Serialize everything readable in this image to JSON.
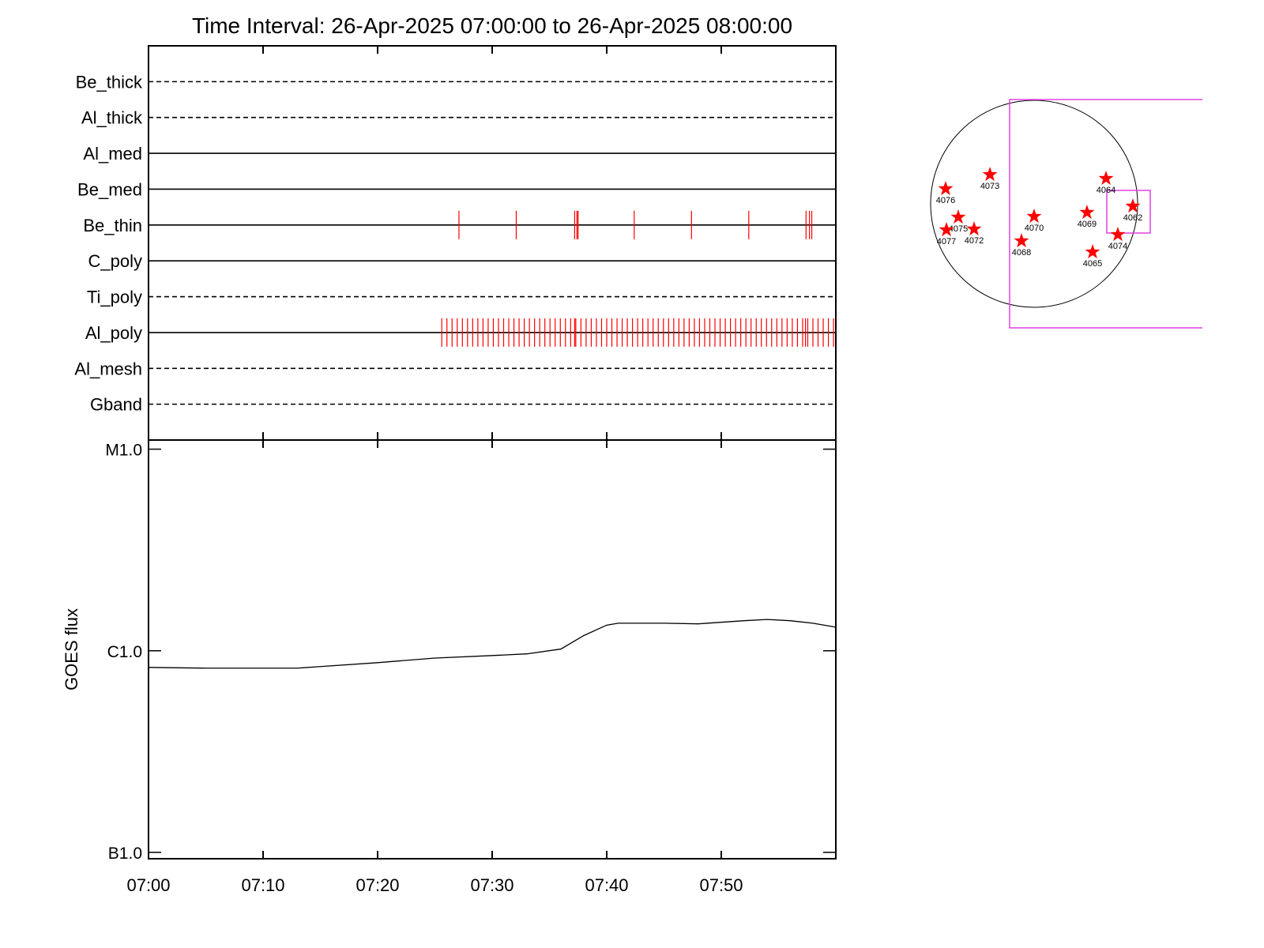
{
  "chart_data": [
    {
      "type": "timeline",
      "title": "Time Interval: 26-Apr-2025 07:00:00 to 26-Apr-2025 08:00:00",
      "color": "#ff0000",
      "series": [
        {
          "name": "Be_thick",
          "style": "dashed",
          "times": []
        },
        {
          "name": "Al_thick",
          "style": "dashed",
          "times": []
        },
        {
          "name": "Al_med",
          "style": "solid",
          "times": []
        },
        {
          "name": "Be_med",
          "style": "solid",
          "times": []
        },
        {
          "name": "Be_thin",
          "style": "solid",
          "times": [
            27.1,
            32.1,
            37.2,
            37.4,
            37.5,
            42.4,
            47.4,
            52.4,
            57.4,
            57.7,
            57.9
          ]
        },
        {
          "name": "C_poly",
          "style": "solid",
          "times": []
        },
        {
          "name": "Ti_poly",
          "style": "dashed",
          "times": []
        },
        {
          "name": "Al_poly",
          "style": "solid",
          "times": [
            25.6,
            26.05,
            26.5,
            26.95,
            27.4,
            27.85,
            28.3,
            28.75,
            29.2,
            29.65,
            30.1,
            30.55,
            31.0,
            31.45,
            31.9,
            32.35,
            32.8,
            33.25,
            33.7,
            34.15,
            34.6,
            35.05,
            35.5,
            35.95,
            36.4,
            36.85,
            37.2,
            37.3,
            37.75,
            38.2,
            38.65,
            39.1,
            39.55,
            40.0,
            40.45,
            40.9,
            41.35,
            41.8,
            42.25,
            42.7,
            43.15,
            43.6,
            44.05,
            44.5,
            44.95,
            45.4,
            45.85,
            46.3,
            46.75,
            47.2,
            47.65,
            48.1,
            48.55,
            49.0,
            49.45,
            49.9,
            50.35,
            50.8,
            51.25,
            51.7,
            52.15,
            52.6,
            53.05,
            53.5,
            53.95,
            54.4,
            54.85,
            55.3,
            55.75,
            56.2,
            56.65,
            57.1,
            57.35,
            57.55,
            58.0,
            58.45,
            58.9,
            59.35,
            59.8
          ]
        },
        {
          "name": "Al_mesh",
          "style": "dashed",
          "times": []
        },
        {
          "name": "Gband",
          "style": "dashed",
          "times": []
        }
      ]
    },
    {
      "type": "line",
      "ylabel": "GOES flux",
      "log_y": true,
      "color": "#000000",
      "x": [
        0,
        5,
        13,
        15,
        20,
        25,
        30,
        33,
        36,
        38,
        40,
        41,
        45,
        48,
        52,
        54,
        56,
        58,
        60
      ],
      "values": [
        8.27e-07,
        8.2e-07,
        8.2e-07,
        8.35e-07,
        8.73e-07,
        9.2e-07,
        9.47e-07,
        9.65e-07,
        1.02e-06,
        1.19e-06,
        1.34e-06,
        1.37e-06,
        1.37e-06,
        1.36e-06,
        1.41e-06,
        1.43e-06,
        1.41e-06,
        1.37e-06,
        1.31e-06
      ],
      "xlim": [
        0,
        60
      ],
      "xticks": [
        {
          "value": 0,
          "label": "07:00"
        },
        {
          "value": 10,
          "label": "07:10"
        },
        {
          "value": 20,
          "label": "07:20"
        },
        {
          "value": 30,
          "label": "07:30"
        },
        {
          "value": 40,
          "label": "07:40"
        },
        {
          "value": 50,
          "label": "07:50"
        }
      ],
      "ylim": [
        9.3e-08,
        1.11e-05
      ],
      "yticks": [
        {
          "value": 1e-05,
          "label": "M1.0"
        },
        {
          "value": 1e-06,
          "label": "C1.0"
        },
        {
          "value": 1e-07,
          "label": "B1.0"
        }
      ]
    },
    {
      "type": "scatter",
      "color": "#ff0000",
      "labels": [
        "4076",
        "4073",
        "4075",
        "4077",
        "4072",
        "4070",
        "4068",
        "4069",
        "4064",
        "4062",
        "4074",
        "4065"
      ],
      "x": [
        -0.855,
        -0.427,
        -0.733,
        -0.847,
        -0.58,
        0.0,
        -0.122,
        0.511,
        0.695,
        0.954,
        0.809,
        0.565
      ],
      "y": [
        0.145,
        0.282,
        -0.13,
        -0.252,
        -0.244,
        -0.122,
        -0.359,
        -0.084,
        0.244,
        -0.023,
        -0.298,
        -0.466
      ]
    }
  ]
}
